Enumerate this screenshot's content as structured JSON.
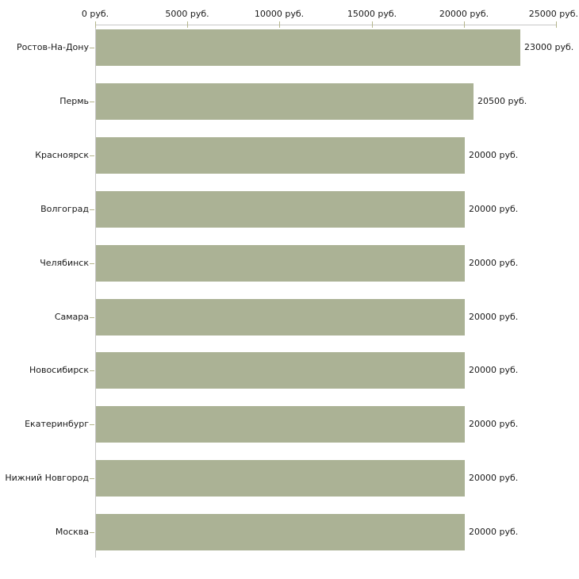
{
  "chart_data": {
    "type": "bar",
    "orientation": "horizontal",
    "title": "",
    "categories": [
      "Ростов-На-Дону",
      "Пермь",
      "Красноярск",
      "Волгоград",
      "Челябинск",
      "Самара",
      "Новосибирск",
      "Екатеринбург",
      "Нижний Новгород",
      "Москва"
    ],
    "values": [
      23000,
      20500,
      20000,
      20000,
      20000,
      20000,
      20000,
      20000,
      20000,
      20000
    ],
    "value_labels": [
      "23000 руб.",
      "20500 руб.",
      "20000 руб.",
      "20000 руб.",
      "20000 руб.",
      "20000 руб.",
      "20000 руб.",
      "20000 руб.",
      "20000 руб.",
      "20000 руб."
    ],
    "x_axis": {
      "position": "top",
      "range": [
        0,
        25000
      ],
      "ticks": [
        0,
        5000,
        10000,
        15000,
        20000,
        25000
      ],
      "tick_labels": [
        "0 руб.",
        "5000 руб.",
        "10000 руб.",
        "15000 руб.",
        "20000 руб.",
        "25000 руб."
      ],
      "unit": "руб."
    },
    "ylabel": "",
    "xlabel": "",
    "grid": false,
    "legend": false,
    "colors": {
      "bar": "#abb295",
      "axis": "#c8c8c8",
      "tick": "#b4b58b",
      "text": "#1a1a1a",
      "background": "#ffffff"
    }
  }
}
